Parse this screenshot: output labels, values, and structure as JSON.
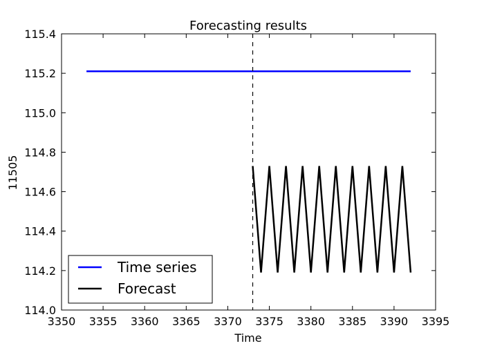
{
  "chart_data": {
    "type": "line",
    "title": "Forecasting results",
    "xlabel": "Time",
    "ylabel": "11505",
    "xlim": [
      3350,
      3395
    ],
    "ylim": [
      114.0,
      115.4
    ],
    "xticks": [
      3350,
      3355,
      3360,
      3365,
      3370,
      3375,
      3380,
      3385,
      3390,
      3395
    ],
    "xtick_labels": [
      "3350",
      "3355",
      "3360",
      "3365",
      "3370",
      "3375",
      "3380",
      "3385",
      "3390",
      "3395"
    ],
    "yticks": [
      114.0,
      114.2,
      114.4,
      114.6,
      114.8,
      115.0,
      115.2,
      115.4
    ],
    "ytick_labels": [
      "114.0",
      "114.2",
      "114.4",
      "114.6",
      "114.8",
      "115.0",
      "115.2",
      "115.4"
    ],
    "grid": false,
    "legend_position": "lower-left",
    "vline": {
      "x": 3373,
      "style": "dashed",
      "color": "#000000"
    },
    "series": [
      {
        "name": "Time series",
        "color": "#0000ff",
        "x": [
          3353,
          3392
        ],
        "y": [
          115.21,
          115.21
        ]
      },
      {
        "name": "Forecast",
        "color": "#000000",
        "x": [
          3373,
          3374,
          3375,
          3376,
          3377,
          3378,
          3379,
          3380,
          3381,
          3382,
          3383,
          3384,
          3385,
          3386,
          3387,
          3388,
          3389,
          3390,
          3391,
          3392
        ],
        "y": [
          114.73,
          114.19,
          114.73,
          114.19,
          114.73,
          114.19,
          114.73,
          114.19,
          114.73,
          114.19,
          114.73,
          114.19,
          114.73,
          114.19,
          114.73,
          114.19,
          114.73,
          114.19,
          114.73,
          114.19
        ]
      }
    ]
  }
}
